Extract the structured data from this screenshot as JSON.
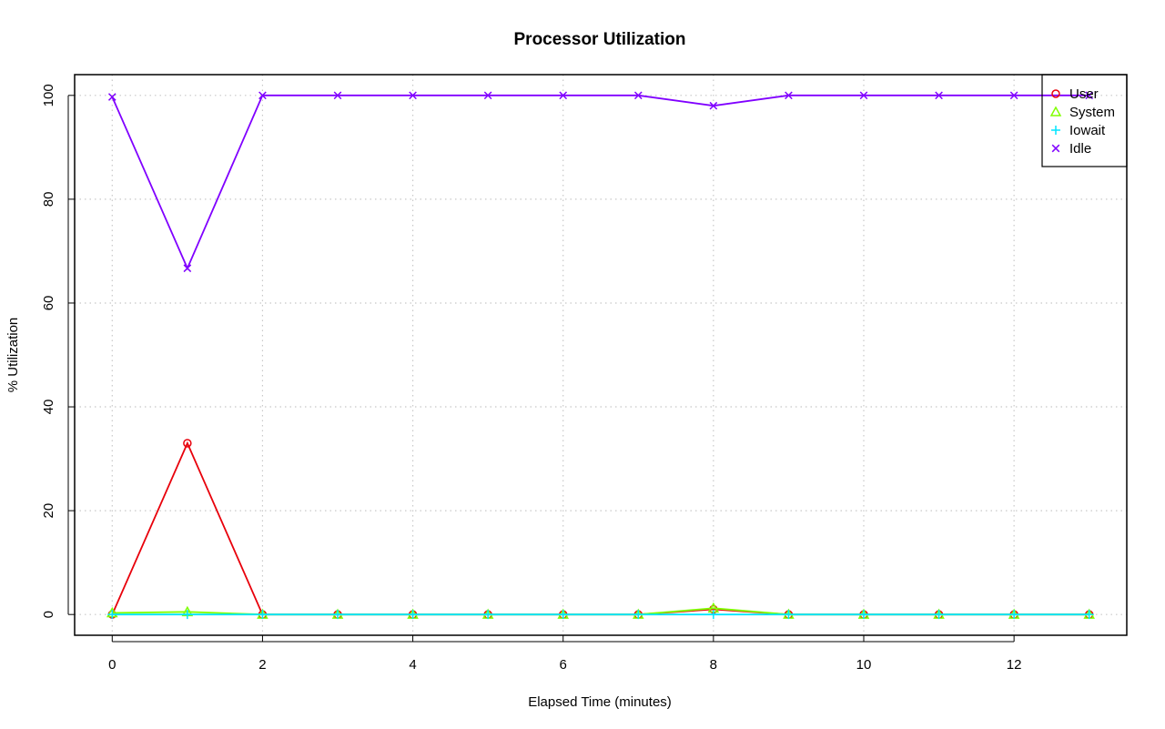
{
  "chart_data": {
    "type": "line",
    "title": "Processor Utilization",
    "xlabel": "Elapsed Time (minutes)",
    "ylabel": "% Utilization",
    "xlim": [
      -0.5,
      13.5
    ],
    "ylim": [
      -4,
      104
    ],
    "xticks": [
      0,
      2,
      4,
      6,
      8,
      10,
      12
    ],
    "yticks": [
      0,
      20,
      40,
      60,
      80,
      100
    ],
    "grid": true,
    "legend_position": "top-right",
    "x": [
      0,
      1,
      2,
      3,
      4,
      5,
      6,
      7,
      8,
      9,
      10,
      11,
      12,
      13
    ],
    "series": [
      {
        "name": "User",
        "color": "#e8000b",
        "marker": "circle",
        "values": [
          0,
          33,
          0,
          0,
          0,
          0,
          0,
          0,
          1,
          0,
          0,
          0,
          0,
          0
        ]
      },
      {
        "name": "System",
        "color": "#80ff00",
        "marker": "triangle",
        "values": [
          0.3,
          0.5,
          0,
          0,
          0,
          0,
          0,
          0,
          1.2,
          0,
          0,
          0,
          0,
          0
        ]
      },
      {
        "name": "Iowait",
        "color": "#00e5ff",
        "marker": "plus",
        "values": [
          0,
          0,
          0,
          0,
          0,
          0,
          0,
          0,
          0,
          0,
          0,
          0,
          0,
          0
        ]
      },
      {
        "name": "Idle",
        "color": "#8000ff",
        "marker": "x",
        "values": [
          99.7,
          66.7,
          100,
          100,
          100,
          100,
          100,
          100,
          98,
          100,
          100,
          100,
          100,
          100
        ]
      }
    ]
  }
}
